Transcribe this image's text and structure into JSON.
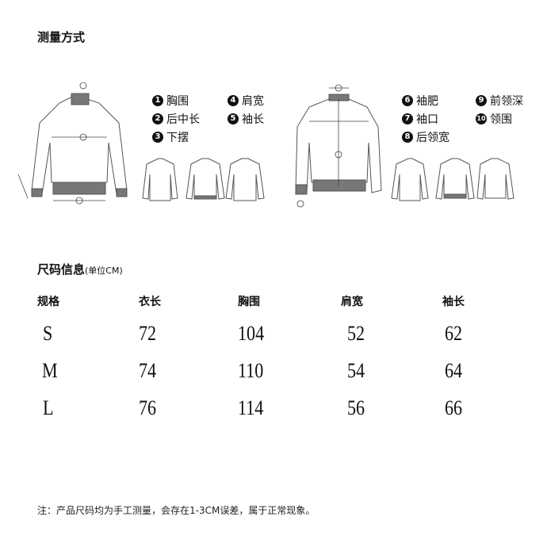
{
  "measure": {
    "title": "测量方式",
    "legend_left": [
      {
        "n": "1",
        "label": "胸围"
      },
      {
        "n": "2",
        "label": "后中长"
      },
      {
        "n": "3",
        "label": "下摆"
      },
      {
        "n": "4",
        "label": "肩宽"
      },
      {
        "n": "5",
        "label": "袖长"
      }
    ],
    "legend_right": [
      {
        "n": "6",
        "label": "袖肥"
      },
      {
        "n": "7",
        "label": "袖口"
      },
      {
        "n": "8",
        "label": "后领宽"
      },
      {
        "n": "9",
        "label": "前领深"
      },
      {
        "n": "10",
        "label": "领围"
      }
    ]
  },
  "size": {
    "title": "尺码信息",
    "unit": "(单位CM)",
    "headers": [
      "规格",
      "衣长",
      "胸围",
      "肩宽",
      "袖长"
    ],
    "rows": [
      [
        "S",
        "72",
        "104",
        "52",
        "62"
      ],
      [
        "M",
        "74",
        "110",
        "54",
        "64"
      ],
      [
        "L",
        "76",
        "114",
        "56",
        "66"
      ]
    ]
  },
  "note": "注：产品尺码均为手工测量，会存在1-3CM误差，属于正常现象。"
}
